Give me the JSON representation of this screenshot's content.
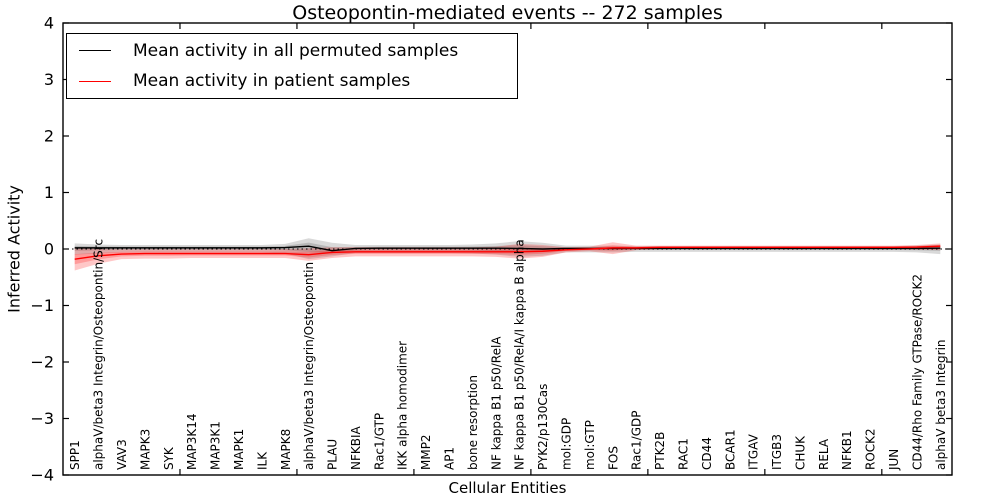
{
  "chart_data": {
    "type": "line",
    "title": "Osteopontin-mediated events -- 272 samples",
    "xlabel": "Cellular Entities",
    "ylabel": "Inferred Activity",
    "ylim": [
      -4,
      4
    ],
    "yticks": [
      4,
      3,
      2,
      1,
      0,
      -1,
      -2,
      -3,
      -4
    ],
    "xtick_interval": 5,
    "grid": false,
    "legend_position": "upper left",
    "zero_reference_line": "dashed",
    "n_samples": 272,
    "categories": [
      "SPP1",
      "alphaV/beta3 Integrin/Osteopontin/Src",
      "VAV3",
      "MAPK3",
      "SYK",
      "MAP3K14",
      "MAP3K1",
      "MAPK1",
      "ILK",
      "MAPK8",
      "alphaV/beta3 Integrin/Osteopontin",
      "PLAU",
      "NFKBIA",
      "Rac1/GTP",
      "IKK alpha homodimer",
      "MMP2",
      "AP1",
      "bone resorption",
      "NF kappa B1 p50/RelA",
      "NF kappa B1 p50/RelA/I kappa B alpha",
      "PYK2/p130Cas",
      "mol:GDP",
      "mol:GTP",
      "FOS",
      "Rac1/GDP",
      "PTK2B",
      "RAC1",
      "CD44",
      "BCAR1",
      "ITGAV",
      "ITGB3",
      "CHUK",
      "RELA",
      "NFKB1",
      "ROCK2",
      "JUN",
      "CD44/Rho Family GTPase/ROCK2",
      "alphaV beta3 Integrin"
    ],
    "series": [
      {
        "name": "Mean activity in all permuted samples",
        "color": "#000000",
        "band_color": "rgba(0,0,0,0.15)",
        "values": [
          0.02,
          0.02,
          0.02,
          0.02,
          0.02,
          0.02,
          0.02,
          0.02,
          0.02,
          0.025,
          0.05,
          -0.03,
          0.01,
          0.015,
          0.015,
          0.015,
          0.015,
          0.015,
          0.015,
          0.01,
          0.0,
          0.01,
          0.01,
          0.01,
          0.01,
          0.01,
          0.01,
          0.01,
          0.01,
          0.01,
          0.01,
          0.01,
          0.01,
          0.01,
          0.01,
          0.01,
          0.01,
          0.015
        ],
        "band_high": [
          0.1,
          0.08,
          0.07,
          0.07,
          0.07,
          0.07,
          0.07,
          0.07,
          0.07,
          0.09,
          0.19,
          0.11,
          0.07,
          0.07,
          0.07,
          0.07,
          0.07,
          0.08,
          0.1,
          0.14,
          0.11,
          0.06,
          0.06,
          0.06,
          0.05,
          0.05,
          0.05,
          0.05,
          0.05,
          0.05,
          0.05,
          0.05,
          0.05,
          0.05,
          0.05,
          0.05,
          0.06,
          0.08
        ],
        "band_low": [
          -0.1,
          -0.08,
          -0.06,
          -0.06,
          -0.06,
          -0.06,
          -0.06,
          -0.06,
          -0.06,
          -0.08,
          -0.18,
          -0.13,
          -0.07,
          -0.07,
          -0.07,
          -0.07,
          -0.07,
          -0.08,
          -0.1,
          -0.14,
          -0.12,
          -0.06,
          -0.06,
          -0.06,
          -0.05,
          -0.05,
          -0.05,
          -0.05,
          -0.05,
          -0.05,
          -0.05,
          -0.05,
          -0.05,
          -0.05,
          -0.05,
          -0.05,
          -0.06,
          -0.09
        ]
      },
      {
        "name": "Mean activity in patient samples",
        "color": "#ff0000",
        "band_color": "rgba(255,0,0,0.22)",
        "values": [
          -0.18,
          -0.12,
          -0.09,
          -0.08,
          -0.08,
          -0.08,
          -0.08,
          -0.08,
          -0.08,
          -0.08,
          -0.1,
          -0.06,
          -0.05,
          -0.05,
          -0.05,
          -0.05,
          -0.05,
          -0.05,
          -0.05,
          -0.05,
          -0.04,
          -0.015,
          0.0,
          0.02,
          0.02,
          0.03,
          0.03,
          0.03,
          0.03,
          0.03,
          0.03,
          0.03,
          0.03,
          0.03,
          0.03,
          0.03,
          0.035,
          0.05
        ],
        "band_high": [
          0.02,
          0.0,
          -0.005,
          -0.005,
          -0.005,
          -0.005,
          -0.005,
          -0.005,
          -0.005,
          0.0,
          0.01,
          0.03,
          0.03,
          0.03,
          0.03,
          0.03,
          0.03,
          0.03,
          0.04,
          0.09,
          0.07,
          0.03,
          0.04,
          0.12,
          0.06,
          0.06,
          0.06,
          0.06,
          0.06,
          0.06,
          0.06,
          0.06,
          0.06,
          0.06,
          0.06,
          0.06,
          0.07,
          0.1
        ],
        "band_low": [
          -0.38,
          -0.26,
          -0.18,
          -0.17,
          -0.17,
          -0.16,
          -0.16,
          -0.16,
          -0.16,
          -0.16,
          -0.21,
          -0.16,
          -0.13,
          -0.13,
          -0.13,
          -0.13,
          -0.13,
          -0.13,
          -0.14,
          -0.17,
          -0.14,
          -0.06,
          -0.04,
          -0.09,
          -0.02,
          0.0,
          0.0,
          0.0,
          0.0,
          0.0,
          0.0,
          0.0,
          0.0,
          0.0,
          0.0,
          0.0,
          -0.01,
          -0.02
        ]
      }
    ]
  }
}
